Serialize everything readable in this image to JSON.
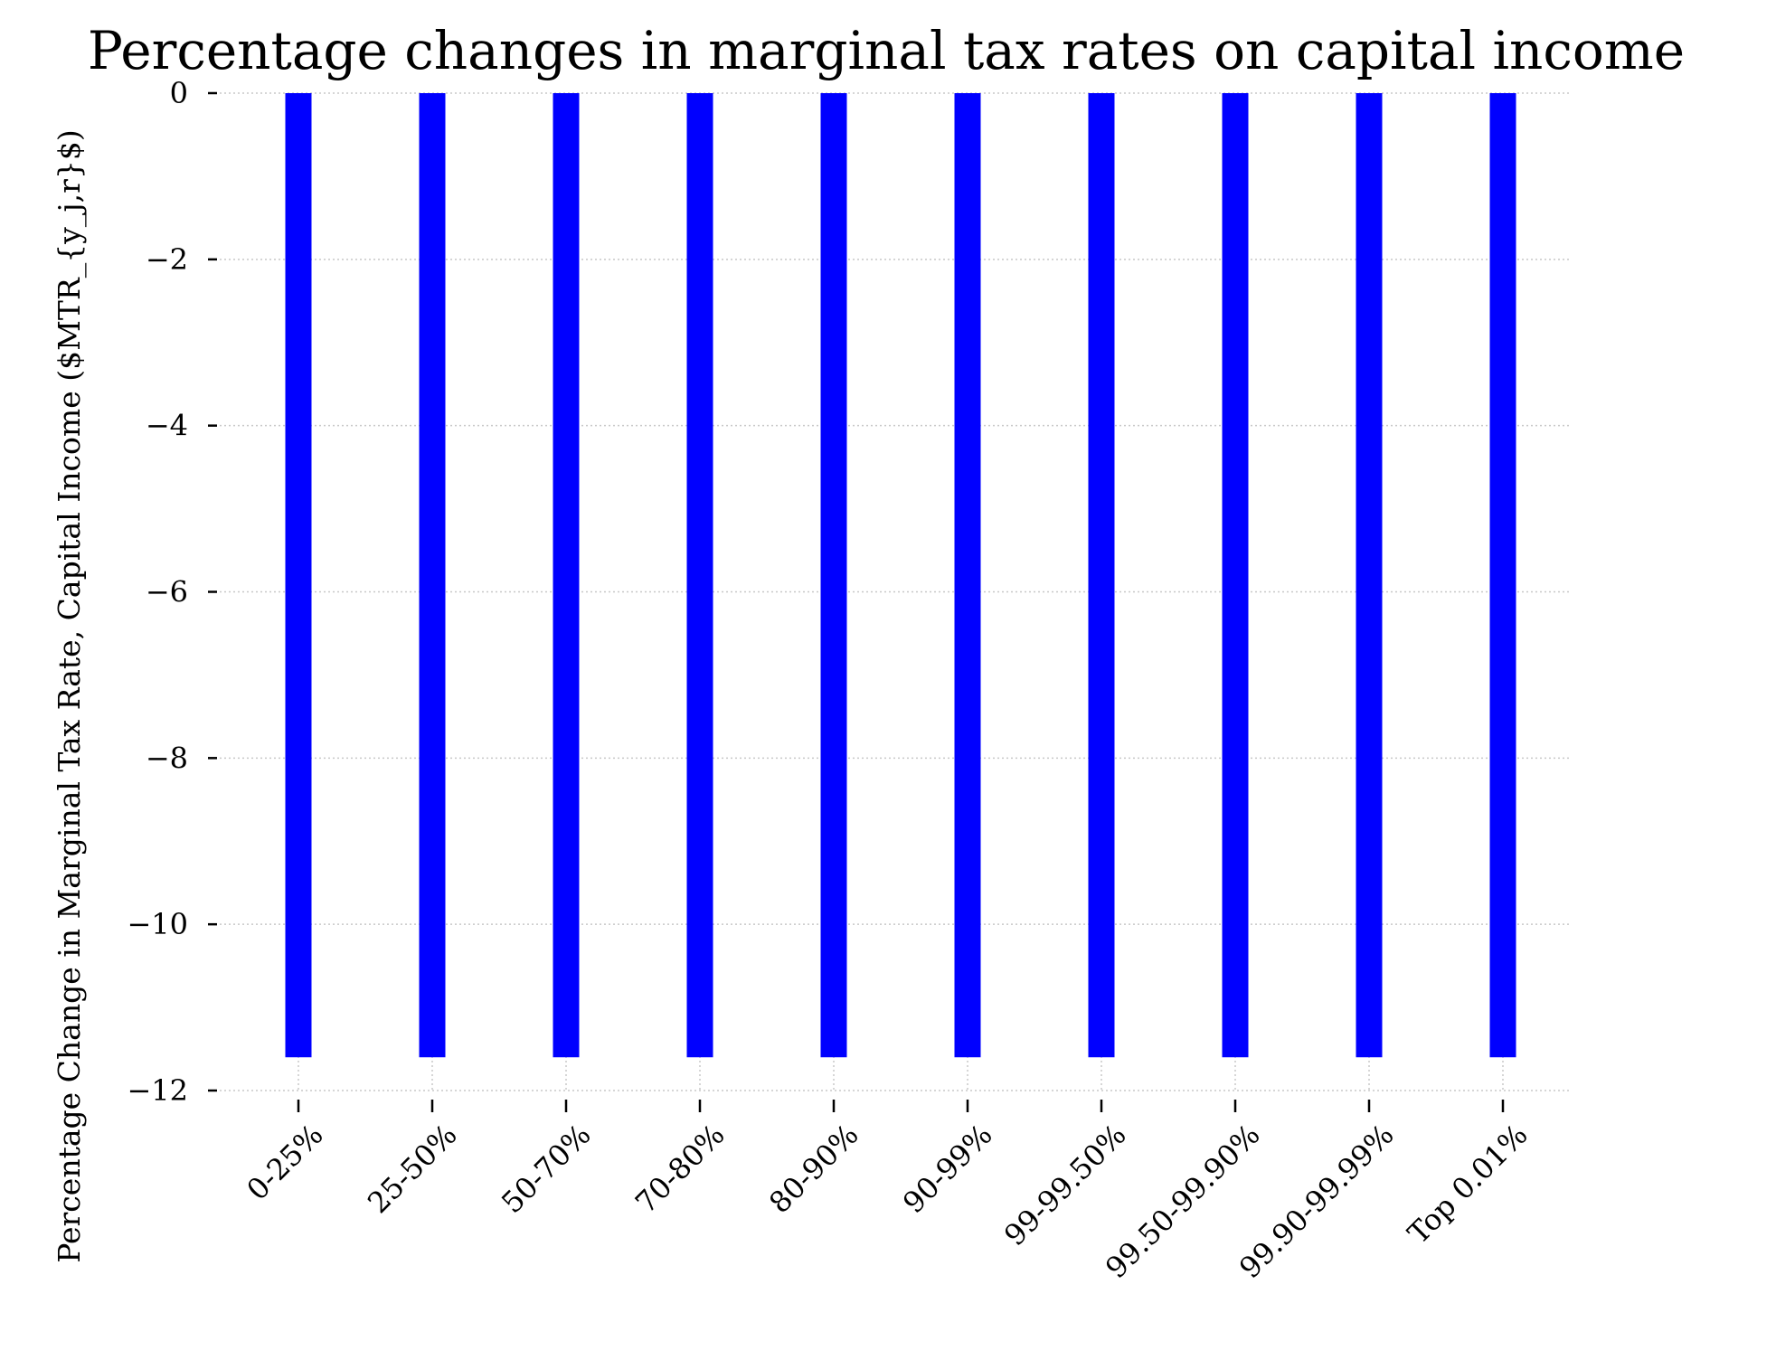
{
  "chart_data": {
    "type": "bar",
    "title": "Percentage changes in marginal tax rates on capital income",
    "xlabel": "",
    "ylabel": "Percentage Change in Marginal Tax Rate, Capital Income ($MTR_{y_j,r}$)",
    "categories": [
      "0-25%",
      "25-50%",
      "50-70%",
      "70-80%",
      "80-90%",
      "90-99%",
      "99-99.50%",
      "99.50-99.90%",
      "99.90-99.99%",
      "Top 0.01%"
    ],
    "series": [
      {
        "values": [
          -11.6,
          -11.6,
          -11.6,
          -11.6,
          -11.6,
          -11.6,
          -11.6,
          -11.6,
          -11.6,
          -11.6
        ]
      }
    ],
    "ylim": [
      -12,
      0
    ],
    "yticks": [
      0,
      -2,
      -4,
      -6,
      -8,
      -10,
      -12
    ],
    "ytick_labels": [
      "0",
      "−2",
      "−4",
      "−6",
      "−8",
      "−10",
      "−12"
    ],
    "grid": true,
    "bar_color": "#0000ff"
  }
}
